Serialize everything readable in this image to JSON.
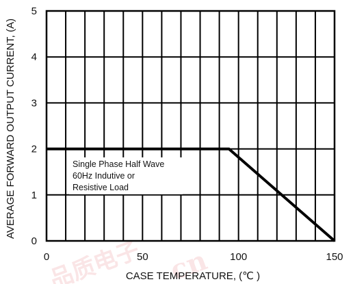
{
  "chart_data": {
    "type": "line",
    "title": "",
    "xlabel": "CASE TEMPERATURE, (℃ )",
    "ylabel": "AVERAGE FORWARD OUTPUT CURRENT, (A)",
    "xlim": [
      0,
      150
    ],
    "ylim": [
      0,
      5
    ],
    "x_ticks": [
      0,
      50,
      100,
      150
    ],
    "x_tick_labels": [
      "0",
      "50",
      "100",
      "150"
    ],
    "y_ticks": [
      0,
      1,
      2,
      3,
      4,
      5
    ],
    "y_tick_labels": [
      "0",
      "1",
      "2",
      "3",
      "4",
      "5"
    ],
    "grid": true,
    "x_grid_step": 10,
    "y_grid_step": 1,
    "line_color": "#000000",
    "series": [
      {
        "x": [
          0,
          95,
          150
        ],
        "y": [
          2,
          2,
          0
        ]
      }
    ],
    "annotation": [
      "Single Phase Half Wave",
      "60Hz Indutive or",
      "Resistive Load"
    ]
  }
}
